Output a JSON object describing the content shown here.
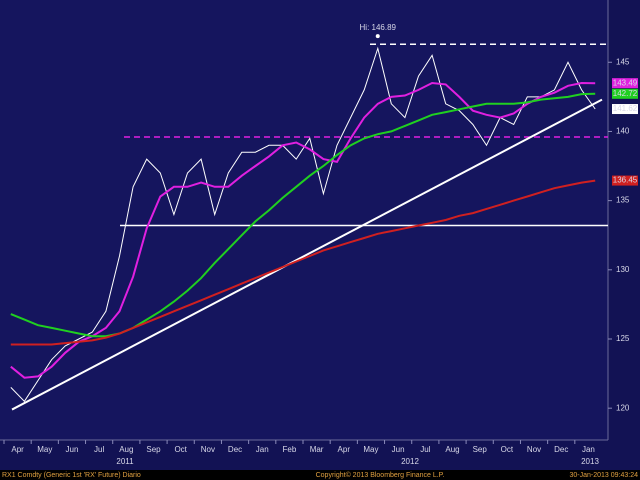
{
  "chart_data": {
    "type": "line",
    "categories": [
      "Apr",
      null,
      "May",
      null,
      "Jun",
      null,
      "Jul",
      null,
      "Aug",
      null,
      "Sep",
      null,
      "Oct",
      null,
      "Nov",
      null,
      "Dec",
      null,
      "Jan",
      null,
      "Feb",
      null,
      "Mar",
      null,
      "Apr",
      null,
      "May",
      null,
      "Jun",
      null,
      "Jul",
      null,
      "Aug",
      null,
      "Sep",
      null,
      "Oct",
      null,
      "Nov",
      null,
      "Dec",
      null,
      "Jan",
      null
    ],
    "years": [
      "2011",
      "2012",
      "2013"
    ],
    "series": [
      {
        "color": "#ffffff",
        "values": [
          121.5,
          120.5,
          122,
          123.5,
          124.5,
          125,
          125.5,
          127,
          131,
          136,
          138,
          137,
          134,
          137,
          138,
          134,
          137,
          138.5,
          138.5,
          139,
          139,
          138,
          139.5,
          135.5,
          139,
          141,
          143,
          146,
          142,
          141,
          144,
          145.5,
          142,
          141.5,
          140.5,
          139,
          141,
          140.5,
          142.5,
          142.5,
          143,
          145,
          143,
          141.62
        ]
      },
      {
        "color": "#e020e0",
        "values": [
          123,
          122.2,
          122.3,
          123,
          124,
          124.8,
          125.2,
          125.8,
          127,
          129.5,
          133,
          135.3,
          136,
          136,
          136.3,
          136,
          136,
          136.8,
          137.5,
          138.2,
          139,
          139.2,
          138.7,
          138,
          137.8,
          139.5,
          141,
          142,
          142.5,
          142.6,
          143,
          143.5,
          143.4,
          142.5,
          141.5,
          141.2,
          141,
          141.3,
          142,
          142.5,
          142.8,
          143.3,
          143.5,
          143.49
        ]
      },
      {
        "color": "#20d020",
        "values": [
          126.8,
          126.4,
          126,
          125.8,
          125.6,
          125.4,
          125.2,
          125.2,
          125.4,
          125.8,
          126.4,
          127,
          127.7,
          128.5,
          129.4,
          130.5,
          131.5,
          132.5,
          133.5,
          134.3,
          135.2,
          136,
          136.8,
          137.5,
          138.3,
          139,
          139.5,
          139.8,
          140,
          140.4,
          140.8,
          141.2,
          141.4,
          141.6,
          141.8,
          142,
          142,
          142,
          142.1,
          142.3,
          142.4,
          142.5,
          142.7,
          142.72
        ]
      },
      {
        "color": "#d02020",
        "values": [
          124.6,
          124.6,
          124.6,
          124.6,
          124.7,
          124.8,
          124.9,
          125.1,
          125.4,
          125.8,
          126.2,
          126.6,
          127,
          127.4,
          127.8,
          128.2,
          128.6,
          129,
          129.4,
          129.8,
          130.2,
          130.6,
          131,
          131.4,
          131.7,
          132,
          132.3,
          132.6,
          132.8,
          133,
          133.2,
          133.4,
          133.6,
          133.9,
          134.1,
          134.4,
          134.7,
          135,
          135.3,
          135.6,
          135.9,
          136.1,
          136.3,
          136.45
        ]
      }
    ],
    "last_labels": [
      {
        "value": 143.49,
        "color": "#e020e0"
      },
      {
        "value": 142.72,
        "color": "#20d020"
      },
      {
        "value": 141.62,
        "color": "#ffffff"
      },
      {
        "value": 136.45,
        "color": "#d02020"
      }
    ],
    "high": {
      "value": 146.89,
      "label": "Hi: 146.89"
    },
    "levels": [
      {
        "value": 146.3,
        "color": "#ffffff",
        "dashed": true
      },
      {
        "value": 139.6,
        "color": "#e020e0",
        "dashed": true
      },
      {
        "value": 133.2,
        "color": "#ffffff",
        "dashed": false
      }
    ],
    "trendline": {
      "start": 119.9,
      "end": 142.3,
      "color": "#ffffff"
    },
    "ylim": [
      117.7,
      149.5
    ],
    "yticks": [
      120,
      125,
      130,
      135,
      140,
      145
    ],
    "footer": {
      "left": "RX1 Comdty (Generic 1st 'RX' Future) Diario",
      "center": "Copyright© 2013 Bloomberg Finance L.P.",
      "right": "30-Jan-2013 09:43:24"
    }
  }
}
